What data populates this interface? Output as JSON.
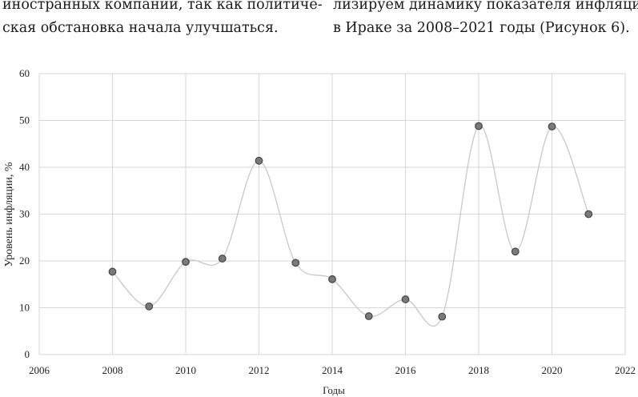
{
  "text": {
    "left_lines": [
      "иностранных компаний, так как политиче-",
      "ская обстановка начала улучшаться."
    ],
    "right_lines": [
      "лизируем динамику показателя инфляции",
      "в Ираке за 2008–2021 годы (Рисунок 6)."
    ]
  },
  "chart_data": {
    "type": "line",
    "xlabel": "Годы",
    "ylabel": "Уровень инфляции, %",
    "xlim": [
      2006,
      2022
    ],
    "ylim": [
      0,
      60
    ],
    "x_ticks": [
      2006,
      2008,
      2010,
      2012,
      2014,
      2016,
      2018,
      2020,
      2022
    ],
    "y_ticks": [
      0,
      10,
      20,
      30,
      40,
      50,
      60
    ],
    "grid": true,
    "smooth": true,
    "series": [
      {
        "x": [
          2008,
          2009,
          2010,
          2011,
          2012,
          2013,
          2014,
          2015,
          2016,
          2017,
          2018,
          2019,
          2020,
          2021
        ],
        "values": [
          17.7,
          10.3,
          19.8,
          20.5,
          41.4,
          19.6,
          16.1,
          8.2,
          11.8,
          8.1,
          48.8,
          22.0,
          48.7,
          30.0
        ]
      }
    ],
    "colors": {
      "line": "#c8c8c8",
      "marker_fill": "#7a7a7a",
      "marker_stroke": "#444444",
      "grid": "#d6d6d6"
    }
  }
}
